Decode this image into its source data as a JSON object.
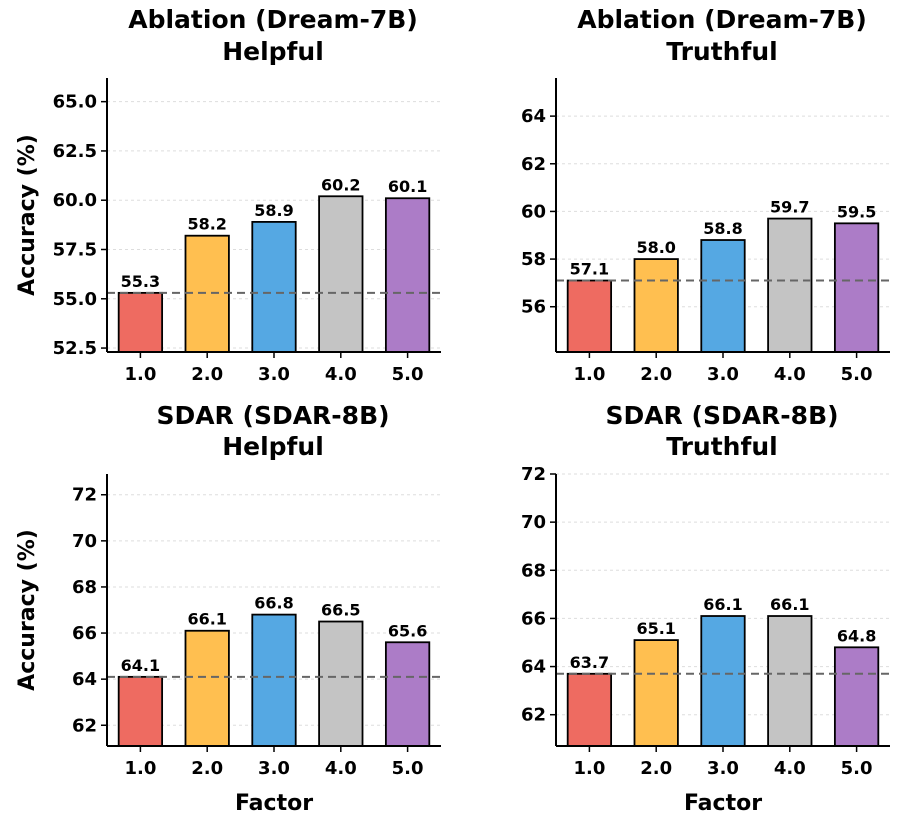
{
  "colors": [
    "#EE6B61",
    "#FFBF50",
    "#55A8E3",
    "#C4C4C4",
    "#AC7CC7"
  ],
  "reference_color": "#666666",
  "chart_data": [
    {
      "type": "bar",
      "title_line1": "Ablation (Dream-7B)",
      "title_line2": "Helpful",
      "categories": [
        "1.0",
        "2.0",
        "3.0",
        "4.0",
        "5.0"
      ],
      "values": [
        55.3,
        58.2,
        58.9,
        60.2,
        60.1
      ],
      "value_labels": [
        "55.3",
        "58.2",
        "58.9",
        "60.2",
        "60.1"
      ],
      "ylabel": "Accuracy (%)",
      "xlabel": "",
      "ylim": [
        52.3,
        66.2
      ],
      "yticks": [
        52.5,
        55.0,
        57.5,
        60.0,
        62.5,
        65.0
      ],
      "ytick_labels": [
        "52.5",
        "55.0",
        "57.5",
        "60.0",
        "62.5",
        "65.0"
      ],
      "reference_line": 55.3,
      "grid": "y-dashed"
    },
    {
      "type": "bar",
      "title_line1": "Ablation (Dream-7B)",
      "title_line2": "Truthful",
      "categories": [
        "1.0",
        "2.0",
        "3.0",
        "4.0",
        "5.0"
      ],
      "values": [
        57.1,
        58.0,
        58.8,
        59.7,
        59.5
      ],
      "value_labels": [
        "57.1",
        "58.0",
        "58.8",
        "59.7",
        "59.5"
      ],
      "ylabel": "",
      "xlabel": "",
      "ylim": [
        54.1,
        65.6
      ],
      "yticks": [
        56,
        58,
        60,
        62,
        64
      ],
      "ytick_labels": [
        "56",
        "58",
        "60",
        "62",
        "64"
      ],
      "reference_line": 57.1,
      "grid": "y-dashed"
    },
    {
      "type": "bar",
      "title_line1": "SDAR (SDAR-8B)",
      "title_line2": "Helpful",
      "categories": [
        "1.0",
        "2.0",
        "3.0",
        "4.0",
        "5.0"
      ],
      "values": [
        64.1,
        66.1,
        66.8,
        66.5,
        65.6
      ],
      "value_labels": [
        "64.1",
        "66.1",
        "66.8",
        "66.5",
        "65.6"
      ],
      "ylabel": "Accuracy (%)",
      "xlabel": "Factor",
      "ylim": [
        61.1,
        72.9
      ],
      "yticks": [
        62,
        64,
        66,
        68,
        70,
        72
      ],
      "ytick_labels": [
        "62",
        "64",
        "66",
        "68",
        "70",
        "72"
      ],
      "reference_line": 64.1,
      "grid": "y-dashed"
    },
    {
      "type": "bar",
      "title_line1": "SDAR (SDAR-8B)",
      "title_line2": "Truthful",
      "categories": [
        "1.0",
        "2.0",
        "3.0",
        "4.0",
        "5.0"
      ],
      "values": [
        63.7,
        65.1,
        66.1,
        66.1,
        64.8
      ],
      "value_labels": [
        "63.7",
        "65.1",
        "66.1",
        "66.1",
        "64.8"
      ],
      "ylabel": "",
      "xlabel": "Factor",
      "ylim": [
        60.7,
        72.0
      ],
      "yticks": [
        62,
        64,
        66,
        68,
        70,
        72
      ],
      "ytick_labels": [
        "62",
        "64",
        "66",
        "68",
        "70",
        "72"
      ],
      "reference_line": 63.7,
      "grid": "y-dashed"
    }
  ]
}
